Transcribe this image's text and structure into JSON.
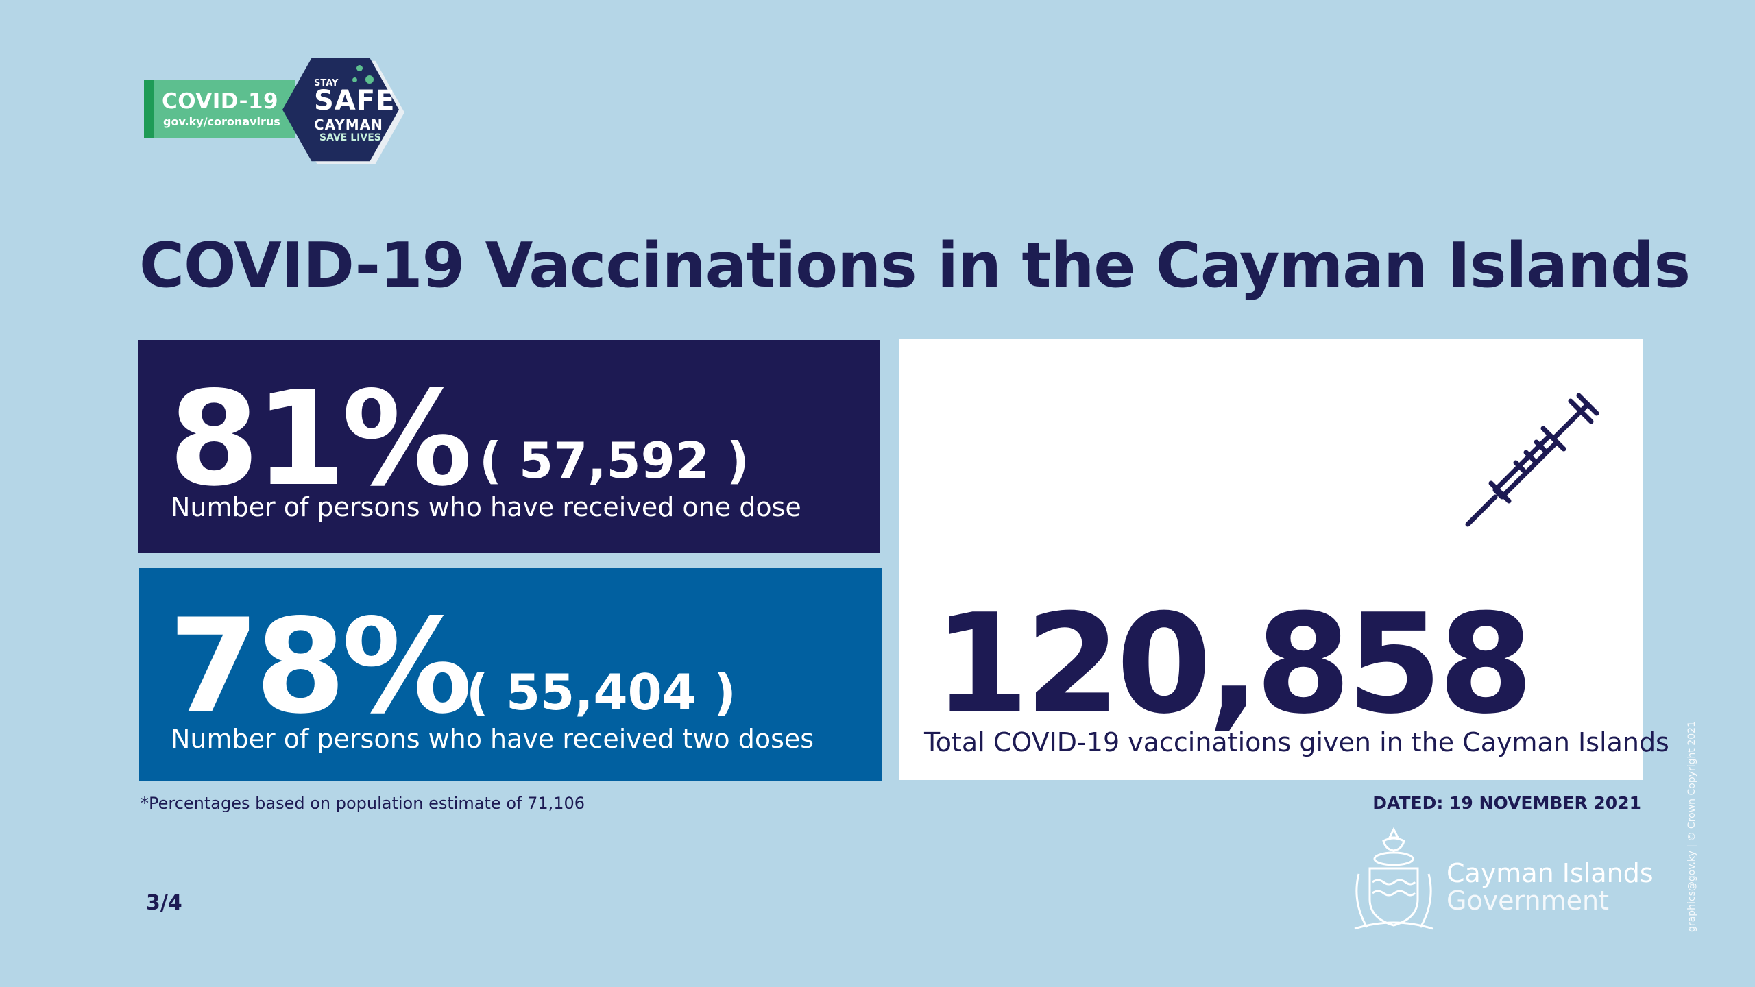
{
  "badge": {
    "covid": "COVID-19",
    "url": "gov.ky/coronavirus",
    "stay": "STAY",
    "safe": "SAFE",
    "cayman": "CAYMAN",
    "save_lives": "SAVE LIVES"
  },
  "title": "COVID-19 Vaccinations in the Cayman Islands",
  "one_dose": {
    "percent": "81%",
    "count": "( 57,592 )",
    "description": "Number of persons who have received one dose"
  },
  "two_doses": {
    "percent": "78%",
    "count": "( 55,404 )",
    "description": "Number of persons who have received two doses"
  },
  "total": {
    "value": "120,858",
    "description": "Total COVID-19 vaccinations given in the Cayman Islands"
  },
  "footnote": "*Percentages based on population estimate of 71,106",
  "dated": "DATED: 19 NOVEMBER 2021",
  "page_indicator": "3/4",
  "government": {
    "line1": "Cayman Islands",
    "line2": "Government"
  },
  "copyright": "graphics@gov.ky | © Crown Copyright 2021",
  "colors": {
    "background": "#b5d6e7",
    "navy": "#1d1a53",
    "blue": "#0160a0",
    "green": "#5dbf8f"
  },
  "icons": {
    "vaccine": "syringe-icon",
    "crest": "coat-of-arms-icon"
  }
}
